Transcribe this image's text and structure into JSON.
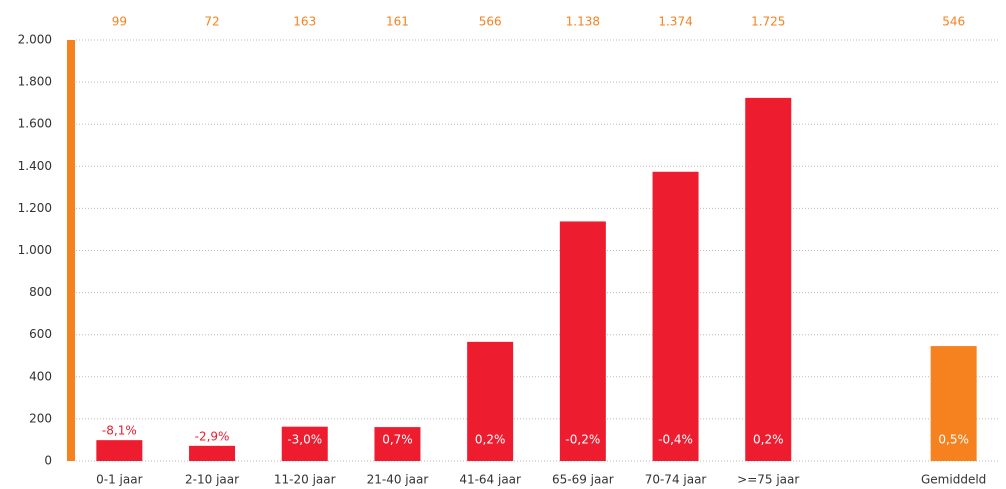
{
  "chart_data": {
    "type": "bar",
    "categories": [
      "0-1 jaar",
      "2-10 jaar",
      "11-20 jaar",
      "21-40 jaar",
      "41-64 jaar",
      "65-69 jaar",
      "70-74 jaar",
      ">=75 jaar",
      null,
      "Gemiddeld"
    ],
    "values": [
      99,
      72,
      163,
      161,
      566,
      1138,
      1374,
      1725,
      null,
      546
    ],
    "value_labels": [
      "99",
      "72",
      "163",
      "161",
      "566",
      "1.138",
      "1.374",
      "1.725",
      null,
      "546"
    ],
    "annotations": [
      "-8,1%",
      "-2,9%",
      "-3,0%",
      "0,7%",
      "0,2%",
      "-0,2%",
      "-0,4%",
      "0,2%",
      null,
      "0,5%"
    ],
    "colors": [
      "#ed1c2e",
      "#ed1c2e",
      "#ed1c2e",
      "#ed1c2e",
      "#ed1c2e",
      "#ed1c2e",
      "#ed1c2e",
      "#ed1c2e",
      null,
      "#f5821f"
    ],
    "axis_color": "#f5821f",
    "label_color": "#f5821f",
    "ylim": [
      0,
      2000
    ],
    "yticks": [
      0,
      200,
      400,
      600,
      800,
      {
        "value": 1000,
        "label": "1.000"
      },
      {
        "value": 1200,
        "label": "1.200"
      },
      {
        "value": 1400,
        "label": "1.400"
      },
      {
        "value": 1600,
        "label": "1.600"
      },
      {
        "value": 1800,
        "label": "1.800"
      },
      {
        "value": 2000,
        "label": "2.000"
      }
    ],
    "grid": true
  }
}
